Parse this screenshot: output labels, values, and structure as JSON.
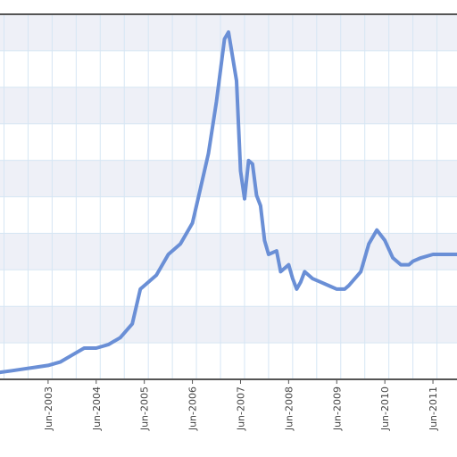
{
  "colors": {
    "line": "#6a8fd6",
    "plot_band": "#eef0f7",
    "grid": "#d6e6f4",
    "axis": "#555555"
  },
  "chart_data": {
    "type": "line",
    "title": "",
    "xlabel": "",
    "ylabel": "",
    "grid": true,
    "legend": "none",
    "x_tick_labels": [
      "Jun-2003",
      "Jun-2004",
      "Jun-2005",
      "Jun-2006",
      "Jun-2007",
      "Jun-2008",
      "Jun-2009",
      "Jun-2010",
      "Jun-2011"
    ],
    "xlim": [
      "2002-06",
      "2011-12"
    ],
    "ylim": [
      0,
      10
    ],
    "y_tick_labels_visible": false,
    "series": [
      {
        "x": [
          "2002-06",
          "2002-09",
          "2002-12",
          "2003-03",
          "2003-06",
          "2003-09",
          "2003-12",
          "2004-03",
          "2004-06",
          "2004-09",
          "2004-12",
          "2005-03",
          "2005-05",
          "2005-06",
          "2005-09",
          "2005-12",
          "2006-03",
          "2006-06",
          "2006-08",
          "2006-10",
          "2006-12",
          "2007-02",
          "2007-03",
          "2007-05",
          "2007-06",
          "2007-07",
          "2007-08",
          "2007-09",
          "2007-10",
          "2007-11",
          "2007-12",
          "2008-01",
          "2008-03",
          "2008-04",
          "2008-06",
          "2008-07",
          "2008-08",
          "2008-09",
          "2008-10",
          "2008-12",
          "2009-02",
          "2009-04",
          "2009-06",
          "2009-08",
          "2009-09",
          "2009-12",
          "2010-02",
          "2010-04",
          "2010-06",
          "2010-08",
          "2010-10",
          "2010-12",
          "2011-01",
          "2011-03",
          "2011-06",
          "2011-09",
          "2011-12"
        ],
        "y": [
          0.2,
          0.25,
          0.3,
          0.35,
          0.4,
          0.5,
          0.7,
          0.9,
          0.9,
          1.0,
          1.2,
          1.6,
          2.6,
          2.7,
          3.0,
          3.6,
          3.9,
          4.5,
          5.5,
          6.5,
          8.0,
          9.8,
          10.0,
          8.6,
          6.0,
          5.2,
          6.3,
          6.2,
          5.3,
          5.0,
          4.0,
          3.6,
          3.7,
          3.1,
          3.3,
          2.9,
          2.6,
          2.8,
          3.1,
          2.9,
          2.8,
          2.7,
          2.6,
          2.6,
          2.7,
          3.1,
          3.9,
          4.3,
          4.0,
          3.5,
          3.3,
          3.3,
          3.4,
          3.5,
          3.6,
          3.6,
          3.6
        ]
      }
    ]
  }
}
